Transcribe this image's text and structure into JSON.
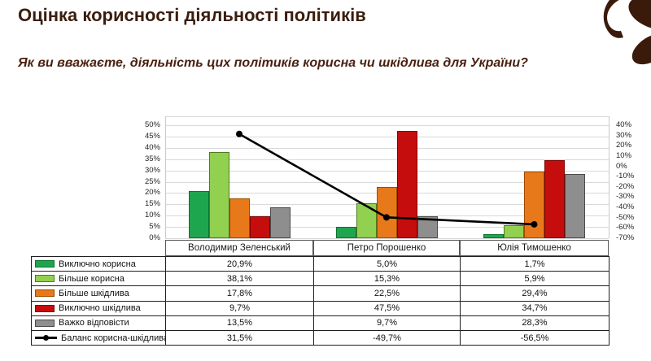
{
  "header": {
    "title": "Оцінка корисності діяльності політиків",
    "question": "Як ви вважаєте, діяльність цих політиків корисна чи шкідлива для України?"
  },
  "logo": {
    "name": "flower-petal-logo",
    "color": "#3a1a0b"
  },
  "chart_data": {
    "type": "bar",
    "subtype": "grouped-bars-with-line-on-secondary-axis",
    "title": "",
    "categories": [
      "Володимир Зеленський",
      "Петро Порошенко",
      "Юлія Тимошенко"
    ],
    "series": [
      {
        "name": "Виключно корисна",
        "kind": "bar",
        "color": "#1ea64e",
        "border_color": "#0e7030",
        "values": [
          20.9,
          5.0,
          1.7
        ],
        "display": [
          "20,9%",
          "5,0%",
          "1,7%"
        ]
      },
      {
        "name": "Більше корисна",
        "kind": "bar",
        "color": "#92d050",
        "border_color": "#4f7a23",
        "values": [
          38.1,
          15.3,
          5.9
        ],
        "display": [
          "38,1%",
          "15,3%",
          "5,9%"
        ]
      },
      {
        "name": "Більше шкідлива",
        "kind": "bar",
        "color": "#e8791a",
        "border_color": "#9c4b00",
        "values": [
          17.8,
          22.5,
          29.4
        ],
        "display": [
          "17,8%",
          "22,5%",
          "29,4%"
        ]
      },
      {
        "name": "Виключно шкідлива",
        "kind": "bar",
        "color": "#c50d0d",
        "border_color": "#7e0303",
        "values": [
          9.7,
          47.5,
          34.7
        ],
        "display": [
          "9,7%",
          "47,5%",
          "34,7%"
        ]
      },
      {
        "name": "Важко відповісти",
        "kind": "bar",
        "color": "#8e8e8e",
        "border_color": "#4a4a4a",
        "values": [
          13.5,
          9.7,
          28.3
        ],
        "display": [
          "13,5%",
          "9,7%",
          "28,3%"
        ]
      },
      {
        "name": "Баланс корисна-шкідлива",
        "kind": "line",
        "axis": "secondary",
        "color": "#000000",
        "values": [
          31.5,
          -49.7,
          -56.5
        ],
        "display": [
          "31,5%",
          "-49,7%",
          "-56,5%"
        ]
      }
    ],
    "primary_axis": {
      "min": 0,
      "max": 50,
      "step": 5,
      "tick_labels": [
        "50%",
        "45%",
        "40%",
        "35%",
        "30%",
        "25%",
        "20%",
        "15%",
        "10%",
        "5%",
        "0%"
      ]
    },
    "secondary_axis": {
      "min": -70,
      "max": 40,
      "step": 10,
      "tick_labels": [
        "40%",
        "30%",
        "20%",
        "10%",
        "0%",
        "-10%",
        "-20%",
        "-30%",
        "-40%",
        "-50%",
        "-60%",
        "-70%"
      ]
    },
    "grid": true,
    "legend_position": "table-left-column"
  }
}
